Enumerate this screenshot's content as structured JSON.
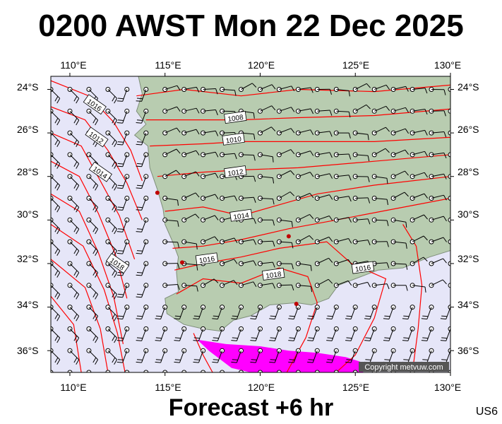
{
  "title": "0200 AWST Mon 22 Dec 2025",
  "footer": "Forecast +6 hr",
  "product_code": "US6",
  "copyright": "Copyright metvuw.com",
  "map": {
    "lon_range": [
      109,
      130
    ],
    "lat_range": [
      -37,
      -23.4
    ],
    "lon_ticks": [
      "110°E",
      "115°E",
      "120°E",
      "125°E",
      "130°E"
    ],
    "lat_ticks": [
      "24°S",
      "26°S",
      "28°S",
      "30°S",
      "32°S",
      "34°S",
      "36°S"
    ],
    "colors": {
      "ocean": "#e6e6f8",
      "land": "#b8ccb0",
      "isobar": "#ff0000",
      "rain": "#ff00ff",
      "wind": "#000000"
    }
  },
  "isobar_labels": [
    {
      "text": "1016",
      "lon": 111.3,
      "lat": -24.7
    },
    {
      "text": "1012",
      "lon": 111.4,
      "lat": -26.2
    },
    {
      "text": "1014",
      "lon": 111.6,
      "lat": -27.8
    },
    {
      "text": "1018",
      "lon": 112.5,
      "lat": -32.0
    },
    {
      "text": "1008",
      "lon": 118.7,
      "lat": -25.3
    },
    {
      "text": "1010",
      "lon": 118.6,
      "lat": -26.3
    },
    {
      "text": "1012",
      "lon": 118.7,
      "lat": -27.8
    },
    {
      "text": "1014",
      "lon": 119.0,
      "lat": -29.8
    },
    {
      "text": "1016",
      "lon": 117.2,
      "lat": -31.8
    },
    {
      "text": "1018",
      "lon": 120.7,
      "lat": -32.5
    },
    {
      "text": "1016",
      "lon": 125.4,
      "lat": -32.2
    }
  ]
}
